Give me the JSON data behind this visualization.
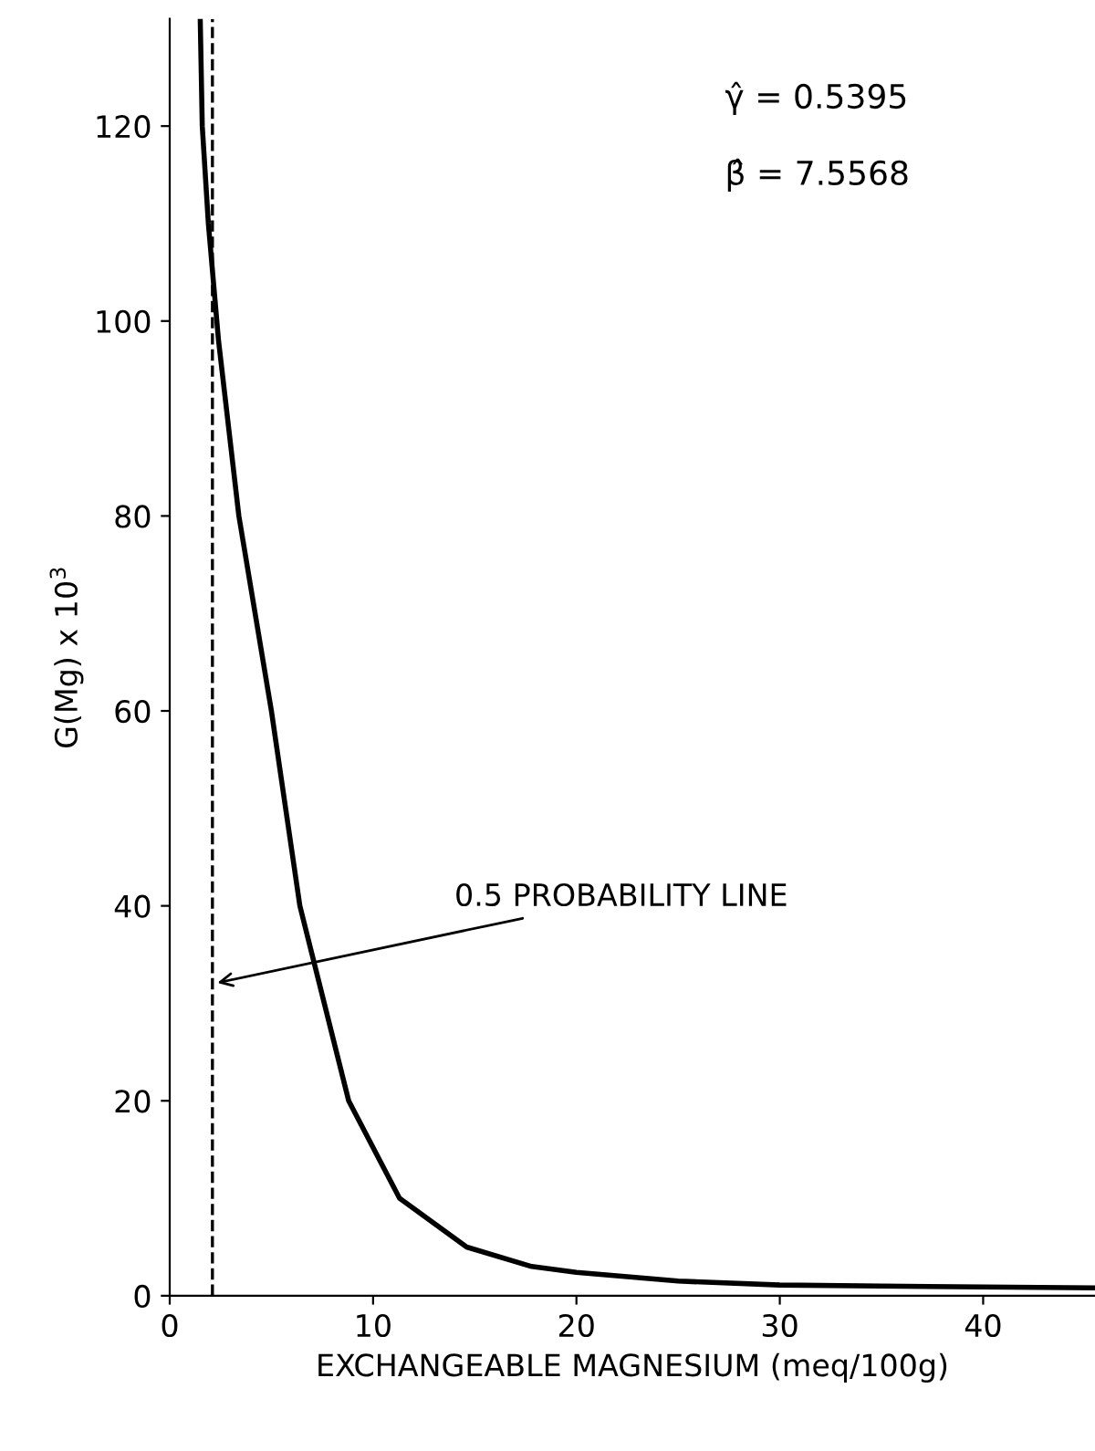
{
  "chart_data": {
    "type": "line",
    "xlabel": "EXCHANGEABLE MAGNESIUM (meq/100g)",
    "ylabel": "G(Mg) x 10$^{3}$",
    "series": [
      {
        "color": "#000000",
        "x": [
          1.5,
          1.6,
          1.9,
          2.4,
          3.4,
          4.2,
          5.0,
          5.7,
          6.4,
          7.0,
          8.8,
          11.3,
          14.6,
          17.8,
          20,
          25,
          30,
          35,
          40,
          45.5
        ],
        "values": [
          131,
          120,
          110,
          98,
          80,
          70,
          60,
          50,
          40,
          35,
          20,
          10,
          5,
          3,
          2.4,
          1.5,
          1.1,
          1,
          0.9,
          0.8
        ]
      }
    ],
    "xlim": [
      0,
      45.5
    ],
    "ylim": [
      0,
      131
    ],
    "xticks": [
      0,
      10,
      20,
      30,
      40
    ],
    "yticks": [
      0,
      20,
      40,
      60,
      80,
      100,
      120
    ],
    "ref_lines": [
      {
        "axis": "x",
        "value": 2.1,
        "line_style": "dashed",
        "color": "#000000"
      }
    ],
    "annotations": [
      {
        "text": "0.5 PROBABILITY LINE",
        "x": 2.1,
        "y": 32
      },
      "γ̂ = 0.5395",
      "β̂ = 7.5568"
    ],
    "grid": false,
    "legend": false,
    "line_style": "solid",
    "marker": "none"
  }
}
